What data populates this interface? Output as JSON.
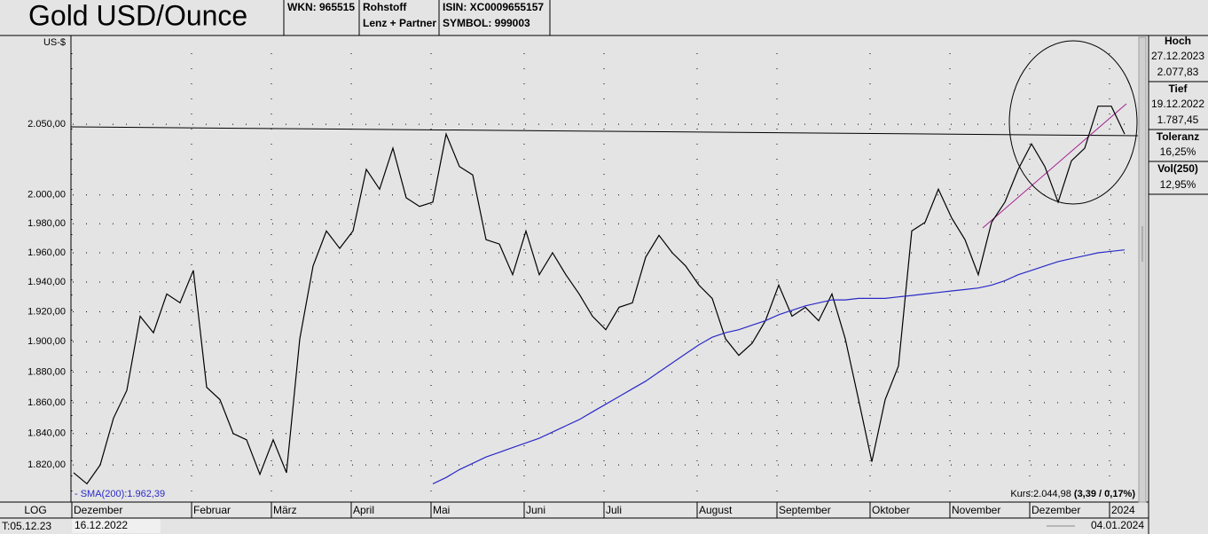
{
  "header": {
    "title": "Gold USD/Ounce",
    "wkn": "WKN: 965515",
    "category": "Rohstoff",
    "source": "Lenz + Partner",
    "isin": "ISIN: XC0009655157",
    "symbol": "SYMBOL: 999003"
  },
  "chart_data": {
    "type": "line",
    "y_label": "US-$",
    "log_scale": true,
    "grid": true,
    "scale_mode": "LOG",
    "timestamp": "T:05.12.23",
    "start_date": "16.12.2022",
    "end_date": "04.01.2024",
    "kurs": "Kurs:2.044,98",
    "kurs_change": "(3,39 / 0,17%)",
    "categories": [
      "Dezember",
      null,
      null,
      null,
      null,
      null,
      null,
      null,
      null,
      "Februar",
      null,
      null,
      null,
      null,
      null,
      "März",
      null,
      null,
      null,
      null,
      null,
      "April",
      null,
      null,
      null,
      null,
      null,
      "Mai",
      null,
      null,
      null,
      null,
      null,
      null,
      "Juni",
      null,
      null,
      null,
      null,
      null,
      "Juli",
      null,
      null,
      null,
      null,
      null,
      null,
      "August",
      null,
      null,
      null,
      null,
      null,
      "September",
      null,
      null,
      null,
      null,
      null,
      null,
      "Oktober",
      null,
      null,
      null,
      null,
      null,
      "November",
      null,
      null,
      null,
      null,
      null,
      "Dezember",
      null,
      null,
      null,
      null,
      null,
      "2024",
      null
    ],
    "series": [
      {
        "color": "#000000",
        "values": [
          1815,
          1808,
          1820,
          1850,
          1868,
          1917,
          1906,
          1932,
          1926,
          1948,
          1870,
          1862,
          1840,
          1836,
          1814,
          1836,
          1815,
          1902,
          1951,
          1975,
          1963,
          1975,
          2018,
          2004,
          2033,
          1998,
          1992,
          1995,
          2043,
          2020,
          2014,
          1969,
          1966,
          1945,
          1975,
          1945,
          1960,
          1945,
          1932,
          1917,
          1908,
          1923,
          1926,
          1957,
          1972,
          1960,
          1951,
          1938,
          1929,
          1902,
          1891,
          1899,
          1914,
          1938,
          1917,
          1923,
          1914,
          1932,
          1902,
          1862,
          1822,
          1862,
          1884,
          1975,
          1981,
          2004,
          1984,
          1969,
          1945,
          1981,
          1995,
          2018,
          2036,
          2020,
          1995,
          2024,
          2033,
          2063,
          2063,
          2043
        ]
      },
      {
        "name": "- SMA(200):1.962,39",
        "color": "#2a2ac8",
        "values": [
          null,
          null,
          null,
          null,
          null,
          null,
          null,
          null,
          null,
          null,
          null,
          null,
          null,
          null,
          null,
          null,
          null,
          null,
          null,
          null,
          null,
          null,
          null,
          null,
          null,
          null,
          null,
          1808,
          1812,
          1817,
          1821,
          1825,
          1828,
          1831,
          1834,
          1837,
          1841,
          1845,
          1849,
          1854,
          1859,
          1864,
          1869,
          1874,
          1880,
          1886,
          1892,
          1898,
          1903,
          1906,
          1908,
          1911,
          1914,
          1918,
          1921,
          1924,
          1926,
          1928,
          1928,
          1929,
          1929,
          1929,
          1930,
          1931,
          1932,
          1933,
          1934,
          1935,
          1936,
          1938,
          1941,
          1945,
          1948,
          1951,
          1954,
          1956,
          1958,
          1960,
          1961,
          1962
        ]
      }
    ],
    "ylim": [
      1796.5,
      2114.6
    ],
    "yticks": [
      {
        "value": 1820,
        "label": "1.820,00"
      },
      {
        "value": 1840,
        "label": "1.840,00"
      },
      {
        "value": 1860,
        "label": "1.860,00"
      },
      {
        "value": 1880,
        "label": "1.880,00"
      },
      {
        "value": 1900,
        "label": "1.900,00"
      },
      {
        "value": 1920,
        "label": "1.920,00"
      },
      {
        "value": 1940,
        "label": "1.940,00"
      },
      {
        "value": 1960,
        "label": "1.960,00"
      },
      {
        "value": 1980,
        "label": "1.980,00"
      },
      {
        "value": 2000,
        "label": "2.000,00"
      },
      {
        "value": 2050,
        "label": "2.050,00"
      }
    ]
  },
  "side_panel": [
    {
      "label": "Hoch",
      "date": "27.12.2023",
      "value": "2.077,83"
    },
    {
      "label": "Tief",
      "date": "19.12.2022",
      "value": "1.787,45"
    },
    {
      "label": "Toleranz",
      "value": "16,25%"
    },
    {
      "label": "Vol(250)",
      "value": "12,95%"
    }
  ]
}
